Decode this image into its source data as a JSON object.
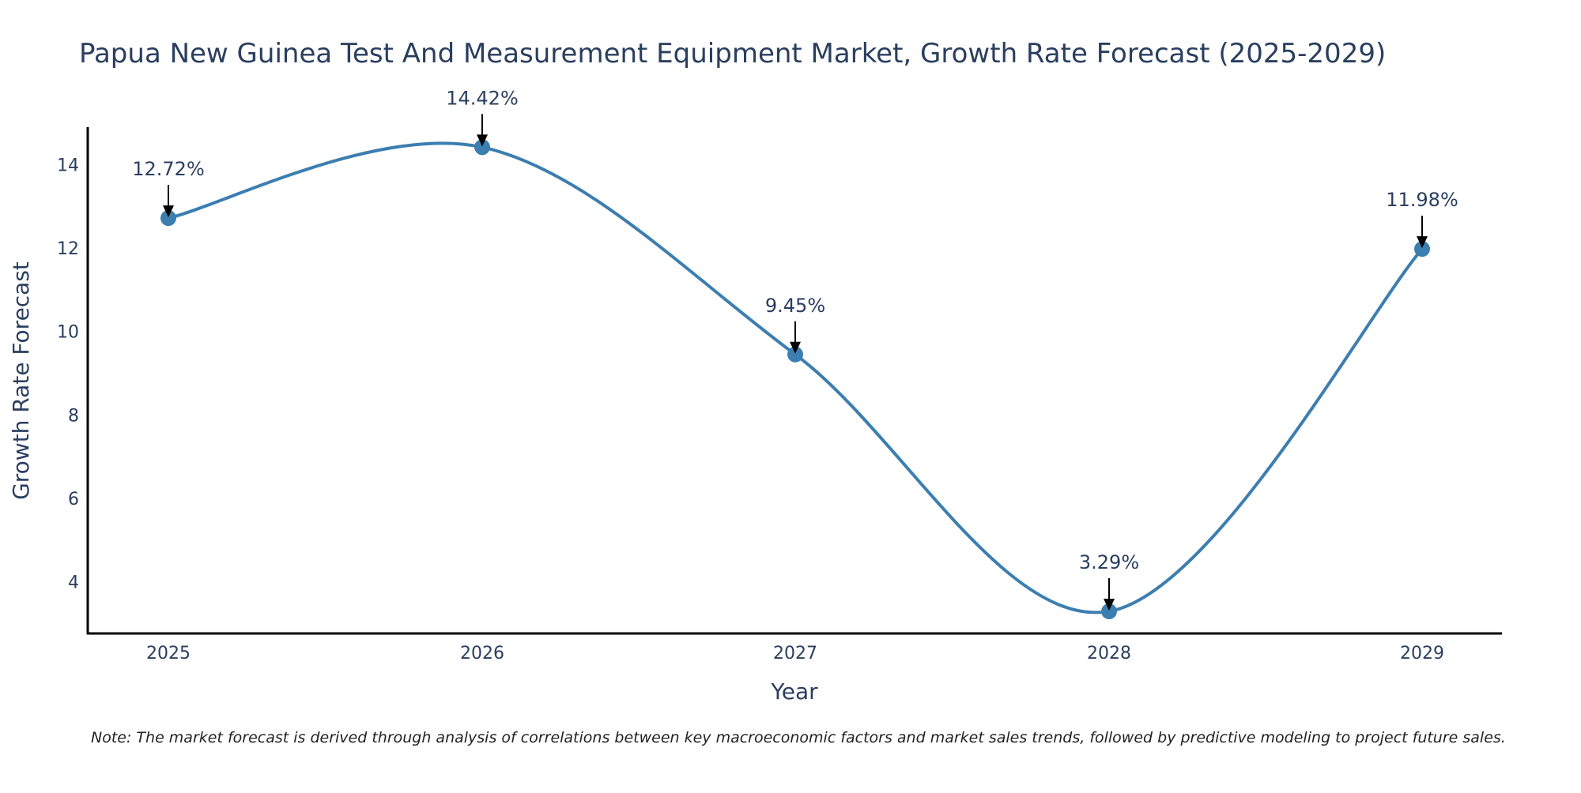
{
  "chart_data": {
    "type": "line",
    "title": "Papua New Guinea Test And Measurement Equipment Market, Growth Rate Forecast (2025-2029)",
    "xlabel": "Year",
    "ylabel": "Growth Rate Forecast",
    "categories": [
      "2025",
      "2026",
      "2027",
      "2028",
      "2029"
    ],
    "series": [
      {
        "name": "Growth Rate Forecast",
        "values": [
          12.72,
          14.42,
          9.45,
          3.29,
          11.98
        ],
        "labels": [
          "12.72%",
          "14.42%",
          "9.45%",
          "3.29%",
          "11.98%"
        ],
        "color": "#3c7eb0"
      }
    ],
    "yticks": [
      4,
      6,
      8,
      10,
      12,
      14
    ],
    "ylim": [
      2.76,
      14.9
    ],
    "grid": false,
    "line_shape": "spline",
    "note": "Note: The market forecast is derived through analysis of correlations between key macroeconomic factors and market sales trends, followed by predictive modeling to project future sales."
  }
}
